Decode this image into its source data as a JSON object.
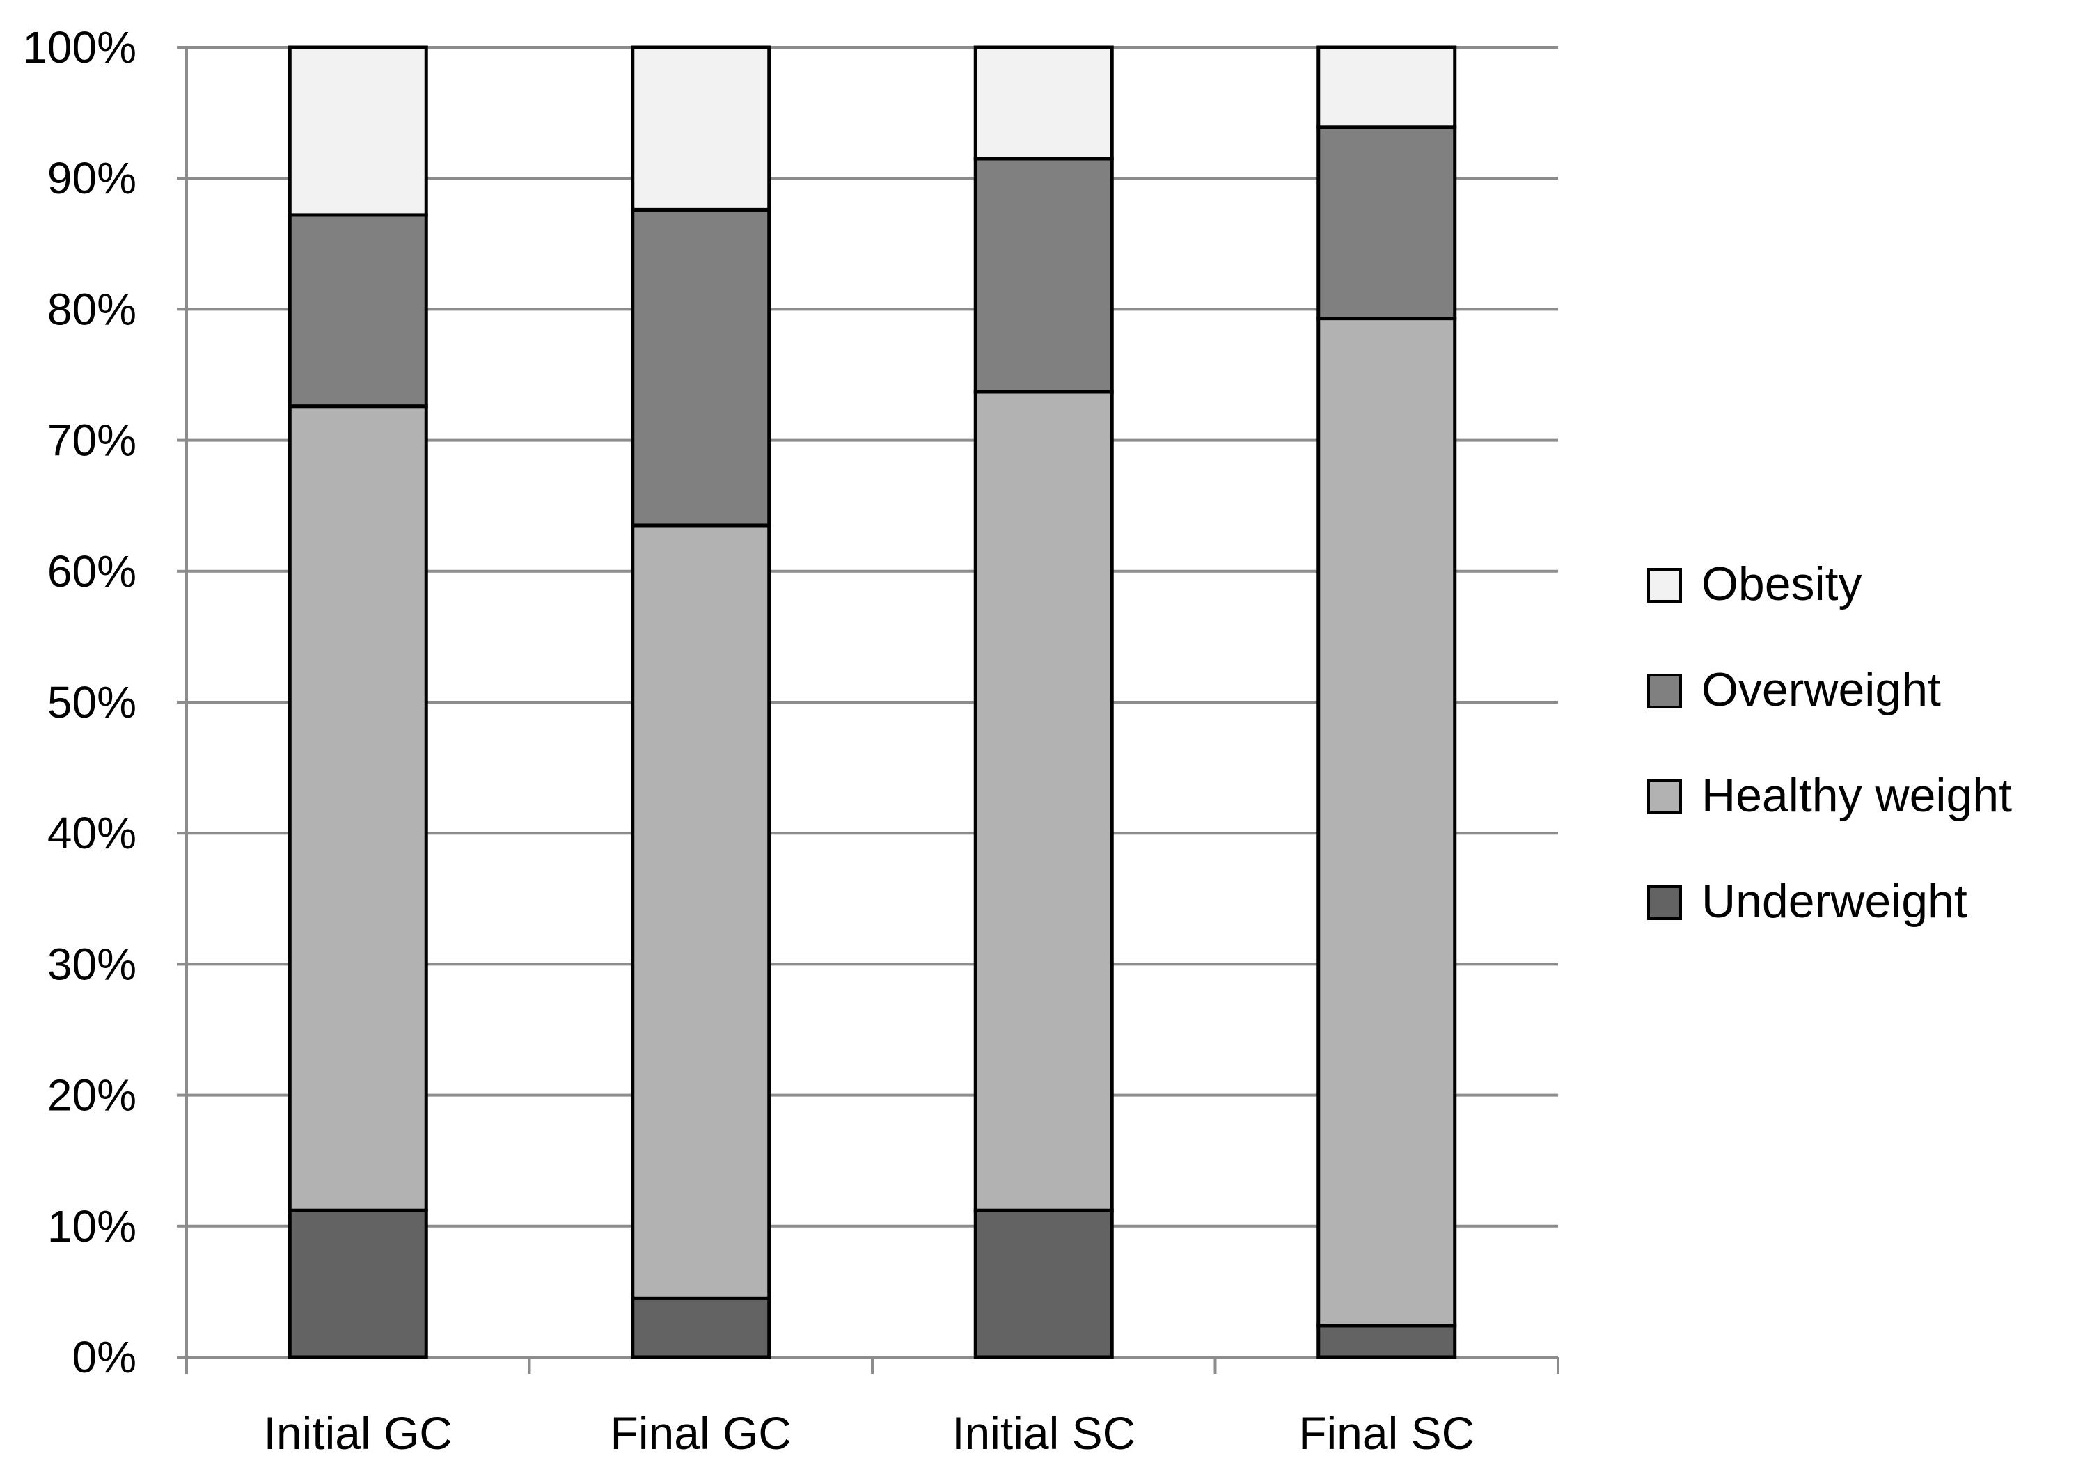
{
  "chart_data": {
    "type": "bar",
    "stacked": true,
    "percent_stacked": true,
    "categories": [
      "Initial GC",
      "Final GC",
      "Initial SC",
      "Final SC"
    ],
    "series": [
      {
        "name": "Underweight",
        "values": [
          11.2,
          4.5,
          11.2,
          2.4
        ],
        "color": "#636363"
      },
      {
        "name": "Healthy weight",
        "values": [
          61.4,
          59.0,
          62.5,
          76.9
        ],
        "color": "#b2b2b2"
      },
      {
        "name": "Overweight",
        "values": [
          14.6,
          24.1,
          17.8,
          14.6
        ],
        "color": "#808080"
      },
      {
        "name": "Obesity",
        "values": [
          12.8,
          12.4,
          8.5,
          6.1
        ],
        "color": "#f2f2f2"
      }
    ],
    "ylim": [
      0,
      100
    ],
    "yticks": [
      0,
      10,
      20,
      30,
      40,
      50,
      60,
      70,
      80,
      90,
      100
    ],
    "ytick_labels": [
      "0%",
      "10%",
      "20%",
      "30%",
      "40%",
      "50%",
      "60%",
      "70%",
      "80%",
      "90%",
      "100%"
    ],
    "grid": true,
    "legend_position": "right",
    "legend_order": [
      "Obesity",
      "Overweight",
      "Healthy weight",
      "Underweight"
    ],
    "title": "",
    "xlabel": "",
    "ylabel": ""
  }
}
